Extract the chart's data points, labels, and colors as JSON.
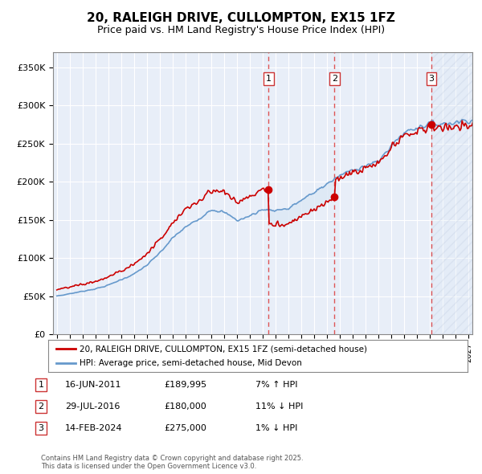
{
  "title": "20, RALEIGH DRIVE, CULLOMPTON, EX15 1FZ",
  "subtitle": "Price paid vs. HM Land Registry's House Price Index (HPI)",
  "ylim": [
    0,
    370000
  ],
  "yticks": [
    0,
    50000,
    100000,
    150000,
    200000,
    250000,
    300000,
    350000
  ],
  "ytick_labels": [
    "£0",
    "£50K",
    "£100K",
    "£150K",
    "£200K",
    "£250K",
    "£300K",
    "£350K"
  ],
  "xlim_start": 1994.7,
  "xlim_end": 2027.3,
  "background_color": "#e8eef8",
  "grid_color": "#ffffff",
  "sale_dates": [
    2011.458,
    2016.575,
    2024.12
  ],
  "sale_prices": [
    189995,
    180000,
    275000
  ],
  "sale_labels": [
    "1",
    "2",
    "3"
  ],
  "legend_entries": [
    "20, RALEIGH DRIVE, CULLOMPTON, EX15 1FZ (semi-detached house)",
    "HPI: Average price, semi-detached house, Mid Devon"
  ],
  "legend_colors": [
    "#cc0000",
    "#6699cc"
  ],
  "table_rows": [
    [
      "1",
      "16-JUN-2011",
      "£189,995",
      "7% ↑ HPI"
    ],
    [
      "2",
      "29-JUL-2016",
      "£180,000",
      "11% ↓ HPI"
    ],
    [
      "3",
      "14-FEB-2024",
      "£275,000",
      "1% ↓ HPI"
    ]
  ],
  "footer": "Contains HM Land Registry data © Crown copyright and database right 2025.\nThis data is licensed under the Open Government Licence v3.0.",
  "hpi_line_color": "#6699cc",
  "price_line_color": "#cc0000",
  "vline_color": "#dd4444",
  "shaded_color": "#dce8f5",
  "hatch_color": "#d0d8e8"
}
